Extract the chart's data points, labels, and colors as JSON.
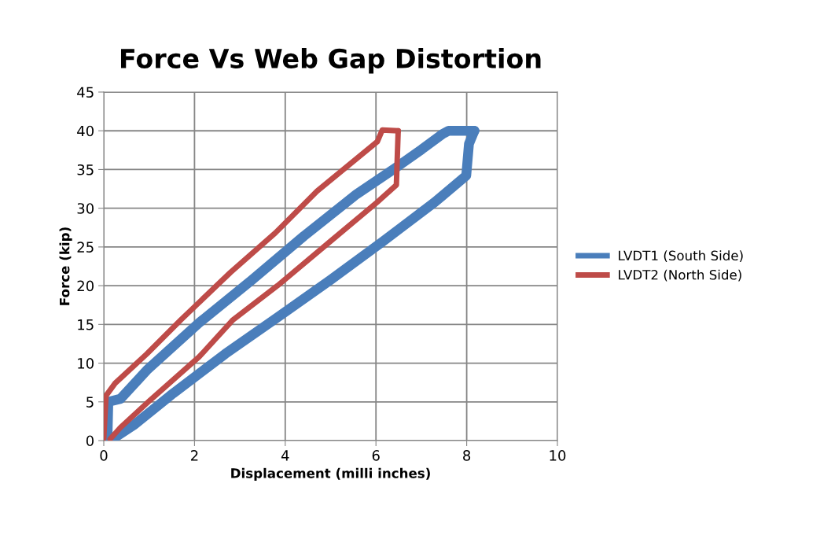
{
  "chart_data": {
    "type": "line",
    "title": "Force Vs Web Gap Distortion",
    "xlabel": "Displacement (milli inches)",
    "ylabel": "Force (kip)",
    "xlim": [
      0,
      10
    ],
    "xticks": [
      0,
      2,
      4,
      6,
      8,
      10
    ],
    "ylim": [
      0,
      45
    ],
    "yticks": [
      0,
      5,
      10,
      15,
      20,
      25,
      30,
      35,
      40,
      45
    ],
    "grid": true,
    "legend": "right",
    "line_style": "solid",
    "series": [
      {
        "name": "LVDT1 (South Side)",
        "color": "#4a7ebb",
        "x": [
          0.14,
          0.66,
          1.53,
          2.68,
          3.83,
          4.99,
          6.15,
          7.3,
          7.99,
          8.05,
          8.17
        ],
        "values": [
          0,
          2.0,
          6.1,
          11.2,
          15.9,
          20.7,
          25.7,
          30.8,
          34.2,
          38.3,
          40
        ]
      },
      {
        "color": "#4a7ebb",
        "x": [
          0.08,
          0.1,
          0.37,
          0.95,
          2.1,
          3.26,
          4.41,
          5.57,
          6.43,
          7.01,
          7.47,
          7.6,
          8.17
        ],
        "values": [
          0,
          5,
          5.4,
          9.1,
          15.2,
          20.7,
          26.4,
          31.8,
          35.2,
          37.6,
          39.6,
          40,
          40
        ]
      },
      {
        "name": "LVDT2 (North Side)",
        "color": "#be4b48",
        "x": [
          0.14,
          0.37,
          1.0,
          2.1,
          2.85,
          3.83,
          4.99,
          6.03,
          6.45,
          6.49
        ],
        "values": [
          0.2,
          1.7,
          5.1,
          10.8,
          15.6,
          20.0,
          25.7,
          30.8,
          33,
          40
        ]
      },
      {
        "color": "#be4b48",
        "x": [
          0.0,
          0.05,
          0.25,
          0.95,
          1.7,
          2.79,
          3.78,
          4.7,
          6.03,
          6.14,
          6.49
        ],
        "values": [
          0.3,
          5.8,
          7.4,
          11.2,
          15.6,
          21.7,
          26.8,
          32.2,
          38.6,
          40.1,
          40
        ]
      }
    ]
  }
}
